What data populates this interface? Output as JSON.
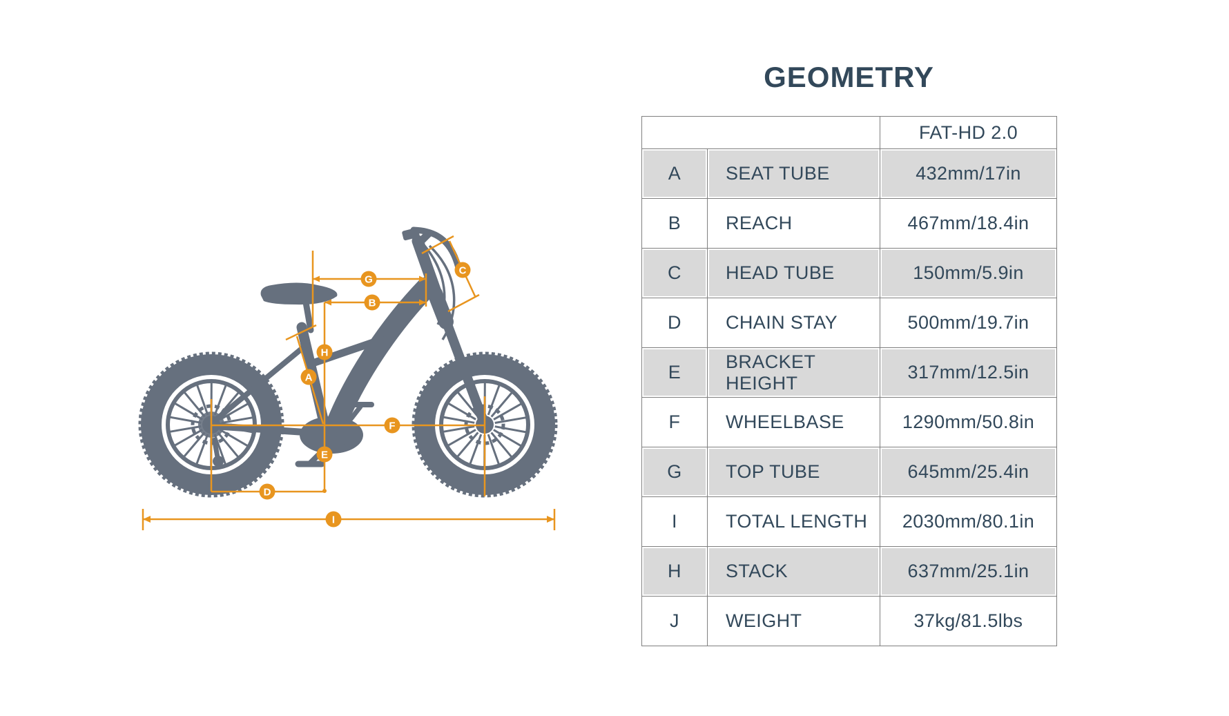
{
  "header": {
    "title": "GEOMETRY"
  },
  "table": {
    "model_header": "FAT-HD 2.0",
    "rows": [
      {
        "letter": "A",
        "name": "SEAT TUBE",
        "value": "432mm/17in"
      },
      {
        "letter": "B",
        "name": "REACH",
        "value": "467mm/18.4in"
      },
      {
        "letter": "C",
        "name": "HEAD TUBE",
        "value": "150mm/5.9in"
      },
      {
        "letter": "D",
        "name": "CHAIN STAY",
        "value": "500mm/19.7in"
      },
      {
        "letter": "E",
        "name": "BRACKET HEIGHT",
        "value": "317mm/12.5in"
      },
      {
        "letter": "F",
        "name": "WHEELBASE",
        "value": "1290mm/50.8in"
      },
      {
        "letter": "G",
        "name": "TOP TUBE",
        "value": "645mm/25.4in"
      },
      {
        "letter": "I",
        "name": "TOTAL LENGTH",
        "value": "2030mm/80.1in"
      },
      {
        "letter": "H",
        "name": "STACK",
        "value": "637mm/25.1in"
      },
      {
        "letter": "J",
        "name": "WEIGHT",
        "value": "37kg/81.5lbs"
      }
    ]
  },
  "diagram": {
    "markers": [
      "A",
      "B",
      "C",
      "D",
      "E",
      "F",
      "G",
      "H",
      "I"
    ]
  },
  "colors": {
    "accent_orange": "#E8951F",
    "bike_gray": "#66707E",
    "text_dark": "#32485A",
    "row_shaded": "#D9D9D9",
    "table_border": "#7F7F7F"
  }
}
